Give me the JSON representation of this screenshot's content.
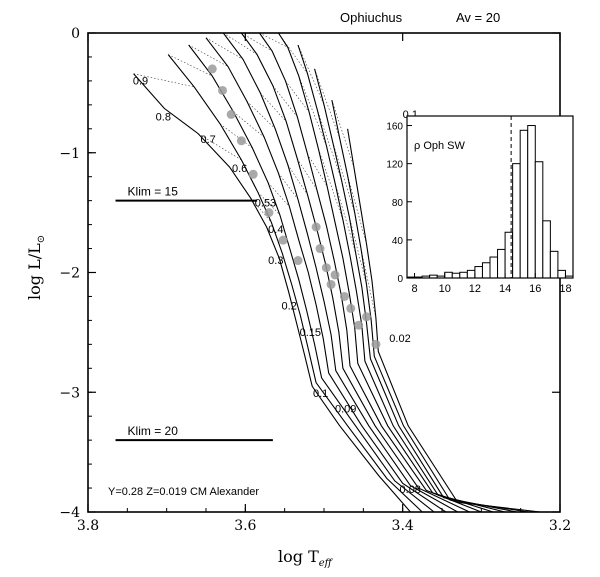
{
  "chart_data": [
    {
      "type": "line",
      "title": "Ophiuchus",
      "subtitle": "Av = 20",
      "xlabel": "log T",
      "xlabel_sub": "eff",
      "ylabel": "log L/L",
      "ylabel_sub": "⊙",
      "xlim": [
        3.8,
        3.2
      ],
      "ylim": [
        -4,
        0
      ],
      "x_ticks": [
        3.8,
        3.6,
        3.4,
        3.2
      ],
      "y_ticks": [
        0,
        -1,
        -2,
        -3,
        -4
      ],
      "x_tick_labels": [
        "3.8",
        "3.6",
        "3.4",
        "3.2"
      ],
      "y_tick_labels": [
        "0",
        "−1",
        "−2",
        "−3",
        "−4"
      ],
      "footnote": "Y=0.28 Z=0.019 CM Alexander",
      "reference_lines": [
        {
          "label": "Klim = 15",
          "y": -1.4,
          "x_from": 3.765,
          "x_to": 3.585
        },
        {
          "label": "Klim = 20",
          "y": -3.4,
          "x_from": 3.765,
          "x_to": 3.565
        }
      ],
      "mass_labels": [
        {
          "text": "0.9",
          "x": 3.743,
          "y": -0.43
        },
        {
          "text": "0.8",
          "x": 3.714,
          "y": -0.73
        },
        {
          "text": "0.7",
          "x": 3.657,
          "y": -0.92
        },
        {
          "text": "0.6",
          "x": 3.617,
          "y": -1.16
        },
        {
          "text": "0.53",
          "x": 3.588,
          "y": -1.45
        },
        {
          "text": "0.4",
          "x": 3.571,
          "y": -1.67
        },
        {
          "text": "0.3",
          "x": 3.571,
          "y": -1.93
        },
        {
          "text": "0.2",
          "x": 3.554,
          "y": -2.31
        },
        {
          "text": "0.15",
          "x": 3.531,
          "y": -2.53
        },
        {
          "text": "0.1",
          "x": 3.514,
          "y": -3.04
        },
        {
          "text": "0.09",
          "x": 3.486,
          "y": -3.17
        },
        {
          "text": "0.08",
          "x": 3.404,
          "y": -3.84
        },
        {
          "text": "0.02",
          "x": 3.417,
          "y": -2.58
        },
        {
          "text": "0.1",
          "x": 3.4,
          "y": -0.71
        }
      ],
      "series": [
        {
          "name": "isochrone",
          "points": [
            [
              3.742,
              -0.34
            ],
            [
              3.703,
              -0.63
            ],
            [
              3.66,
              -0.84
            ],
            [
              3.62,
              -1.12
            ],
            [
              3.593,
              -1.38
            ],
            [
              3.573,
              -1.62
            ],
            [
              3.557,
              -1.88
            ],
            [
              3.545,
              -2.16
            ],
            [
              3.535,
              -2.42
            ],
            [
              3.525,
              -2.68
            ],
            [
              3.515,
              -2.95
            ],
            [
              3.48,
              -3.28
            ],
            [
              3.43,
              -3.7
            ],
            [
              3.39,
              -4.0
            ]
          ]
        },
        {
          "name": "isochrone",
          "points": [
            [
              3.698,
              -0.18
            ],
            [
              3.665,
              -0.45
            ],
            [
              3.632,
              -0.76
            ],
            [
              3.605,
              -1.06
            ],
            [
              3.584,
              -1.33
            ],
            [
              3.567,
              -1.58
            ],
            [
              3.553,
              -1.84
            ],
            [
              3.541,
              -2.1
            ],
            [
              3.53,
              -2.36
            ],
            [
              3.52,
              -2.64
            ],
            [
              3.51,
              -2.92
            ],
            [
              3.47,
              -3.28
            ],
            [
              3.42,
              -3.72
            ],
            [
              3.375,
              -4.0
            ]
          ]
        },
        {
          "name": "isochrone",
          "points": [
            [
              3.672,
              -0.1
            ],
            [
              3.642,
              -0.36
            ],
            [
              3.615,
              -0.66
            ],
            [
              3.591,
              -0.96
            ],
            [
              3.571,
              -1.25
            ],
            [
              3.556,
              -1.52
            ],
            [
              3.544,
              -1.79
            ],
            [
              3.532,
              -2.06
            ],
            [
              3.522,
              -2.32
            ],
            [
              3.512,
              -2.6
            ],
            [
              3.503,
              -2.88
            ],
            [
              3.46,
              -3.28
            ],
            [
              3.41,
              -3.74
            ],
            [
              3.36,
              -4.0
            ]
          ]
        },
        {
          "name": "isochrone",
          "points": [
            [
              3.65,
              -0.04
            ],
            [
              3.622,
              -0.28
            ],
            [
              3.598,
              -0.57
            ],
            [
              3.576,
              -0.87
            ],
            [
              3.558,
              -1.17
            ],
            [
              3.544,
              -1.45
            ],
            [
              3.532,
              -1.73
            ],
            [
              3.52,
              -2.0
            ],
            [
              3.51,
              -2.27
            ],
            [
              3.501,
              -2.55
            ],
            [
              3.494,
              -2.84
            ],
            [
              3.452,
              -3.28
            ],
            [
              3.4,
              -3.76
            ],
            [
              3.345,
              -4.0
            ]
          ]
        },
        {
          "name": "isochrone",
          "points": [
            [
              3.628,
              0.0
            ],
            [
              3.603,
              -0.22
            ],
            [
              3.581,
              -0.5
            ],
            [
              3.562,
              -0.8
            ],
            [
              3.546,
              -1.1
            ],
            [
              3.533,
              -1.39
            ],
            [
              3.521,
              -1.68
            ],
            [
              3.51,
              -1.96
            ],
            [
              3.5,
              -2.24
            ],
            [
              3.491,
              -2.52
            ],
            [
              3.485,
              -2.82
            ],
            [
              3.443,
              -3.28
            ],
            [
              3.39,
              -3.78
            ],
            [
              3.33,
              -4.0
            ]
          ]
        },
        {
          "name": "isochrone",
          "points": [
            [
              3.605,
              0.0
            ],
            [
              3.585,
              -0.18
            ],
            [
              3.565,
              -0.44
            ],
            [
              3.548,
              -0.74
            ],
            [
              3.534,
              -1.05
            ],
            [
              3.521,
              -1.35
            ],
            [
              3.509,
              -1.64
            ],
            [
              3.498,
              -1.93
            ],
            [
              3.489,
              -2.21
            ],
            [
              3.481,
              -2.5
            ],
            [
              3.476,
              -2.8
            ],
            [
              3.435,
              -3.28
            ],
            [
              3.38,
              -3.8
            ],
            [
              3.315,
              -4.0
            ]
          ]
        },
        {
          "name": "isochrone",
          "points": [
            [
              3.582,
              0.0
            ],
            [
              3.566,
              -0.15
            ],
            [
              3.549,
              -0.4
            ],
            [
              3.534,
              -0.7
            ],
            [
              3.521,
              -1.01
            ],
            [
              3.509,
              -1.31
            ],
            [
              3.497,
              -1.61
            ],
            [
              3.487,
              -1.9
            ],
            [
              3.478,
              -2.19
            ],
            [
              3.471,
              -2.48
            ],
            [
              3.467,
              -2.78
            ],
            [
              3.427,
              -3.28
            ],
            [
              3.37,
              -3.82
            ],
            [
              3.3,
              -4.0
            ]
          ]
        },
        {
          "name": "isochrone",
          "points": [
            [
              3.558,
              0.0
            ],
            [
              3.546,
              -0.12
            ],
            [
              3.532,
              -0.36
            ],
            [
              3.519,
              -0.66
            ],
            [
              3.507,
              -0.97
            ],
            [
              3.496,
              -1.28
            ],
            [
              3.486,
              -1.58
            ],
            [
              3.476,
              -1.88
            ],
            [
              3.468,
              -2.17
            ],
            [
              3.461,
              -2.46
            ],
            [
              3.457,
              -2.76
            ],
            [
              3.419,
              -3.28
            ],
            [
              3.362,
              -3.84
            ],
            [
              3.285,
              -4.0
            ]
          ]
        },
        {
          "name": "isochrone",
          "points": [
            [
              3.533,
              -0.1
            ],
            [
              3.521,
              -0.34
            ],
            [
              3.509,
              -0.63
            ],
            [
              3.497,
              -0.94
            ],
            [
              3.486,
              -1.25
            ],
            [
              3.476,
              -1.56
            ],
            [
              3.467,
              -1.86
            ],
            [
              3.459,
              -2.15
            ],
            [
              3.452,
              -2.44
            ],
            [
              3.448,
              -2.74
            ],
            [
              3.412,
              -3.28
            ],
            [
              3.355,
              -3.86
            ],
            [
              3.27,
              -4.0
            ]
          ]
        },
        {
          "name": "isochrone",
          "points": [
            [
              3.512,
              -0.3
            ],
            [
              3.5,
              -0.6
            ],
            [
              3.489,
              -0.91
            ],
            [
              3.478,
              -1.22
            ],
            [
              3.468,
              -1.53
            ],
            [
              3.46,
              -1.83
            ],
            [
              3.452,
              -2.12
            ],
            [
              3.446,
              -2.42
            ],
            [
              3.441,
              -2.72
            ],
            [
              3.405,
              -3.28
            ],
            [
              3.348,
              -3.88
            ],
            [
              3.255,
              -4.0
            ]
          ]
        },
        {
          "name": "isochrone",
          "points": [
            [
              3.49,
              -0.56
            ],
            [
              3.48,
              -0.88
            ],
            [
              3.47,
              -1.19
            ],
            [
              3.461,
              -1.5
            ],
            [
              3.453,
              -1.8
            ],
            [
              3.446,
              -2.1
            ],
            [
              3.44,
              -2.4
            ],
            [
              3.436,
              -2.7
            ],
            [
              3.399,
              -3.28
            ],
            [
              3.34,
              -3.9
            ],
            [
              3.24,
              -4.0
            ]
          ]
        },
        {
          "name": "isochrone",
          "points": [
            [
              3.47,
              -0.8
            ],
            [
              3.462,
              -1.12
            ],
            [
              3.454,
              -1.44
            ],
            [
              3.446,
              -1.76
            ],
            [
              3.439,
              -2.07
            ],
            [
              3.434,
              -2.38
            ],
            [
              3.431,
              -2.66
            ],
            [
              3.393,
              -3.28
            ],
            [
              3.33,
              -3.92
            ],
            [
              3.225,
              -4.0
            ]
          ]
        }
      ],
      "observed_points": [
        {
          "x": 3.642,
          "y": -0.3
        },
        {
          "x": 3.629,
          "y": -0.48
        },
        {
          "x": 3.618,
          "y": -0.68
        },
        {
          "x": 3.605,
          "y": -0.9
        },
        {
          "x": 3.59,
          "y": -1.18
        },
        {
          "x": 3.57,
          "y": -1.5
        },
        {
          "x": 3.552,
          "y": -1.73
        },
        {
          "x": 3.533,
          "y": -1.9
        },
        {
          "x": 3.51,
          "y": -1.62
        },
        {
          "x": 3.505,
          "y": -1.8
        },
        {
          "x": 3.497,
          "y": -1.96
        },
        {
          "x": 3.491,
          "y": -2.1
        },
        {
          "x": 3.486,
          "y": -2.02
        },
        {
          "x": 3.474,
          "y": -2.2
        },
        {
          "x": 3.466,
          "y": -2.3
        },
        {
          "x": 3.456,
          "y": -2.44
        },
        {
          "x": 3.446,
          "y": -2.37
        },
        {
          "x": 3.434,
          "y": -2.6
        }
      ]
    },
    {
      "type": "bar",
      "title": "ρ Oph SW",
      "xlim": [
        7.5,
        18.5
      ],
      "ylim": [
        0,
        170
      ],
      "x_ticks": [
        8,
        10,
        12,
        14,
        16,
        18
      ],
      "y_ticks": [
        0,
        40,
        80,
        120,
        160
      ],
      "x_tick_labels": [
        "8",
        "10",
        "12",
        "14",
        "16",
        "18"
      ],
      "y_tick_labels": [
        "0",
        "40",
        "80",
        "120",
        "160"
      ],
      "bin_width": 0.5,
      "bin_edges_start": [
        7.5,
        8.0,
        8.5,
        9.0,
        9.5,
        10.0,
        10.5,
        11.0,
        11.5,
        12.0,
        12.5,
        13.0,
        13.5,
        14.0,
        14.5,
        15.0,
        15.5,
        16.0,
        16.5,
        17.0,
        17.5,
        18.0
      ],
      "values": [
        1,
        1,
        2,
        3,
        2,
        6,
        5,
        6,
        8,
        12,
        16,
        22,
        30,
        48,
        120,
        155,
        160,
        122,
        60,
        28,
        8,
        2
      ],
      "limit_line": 14.4
    }
  ]
}
